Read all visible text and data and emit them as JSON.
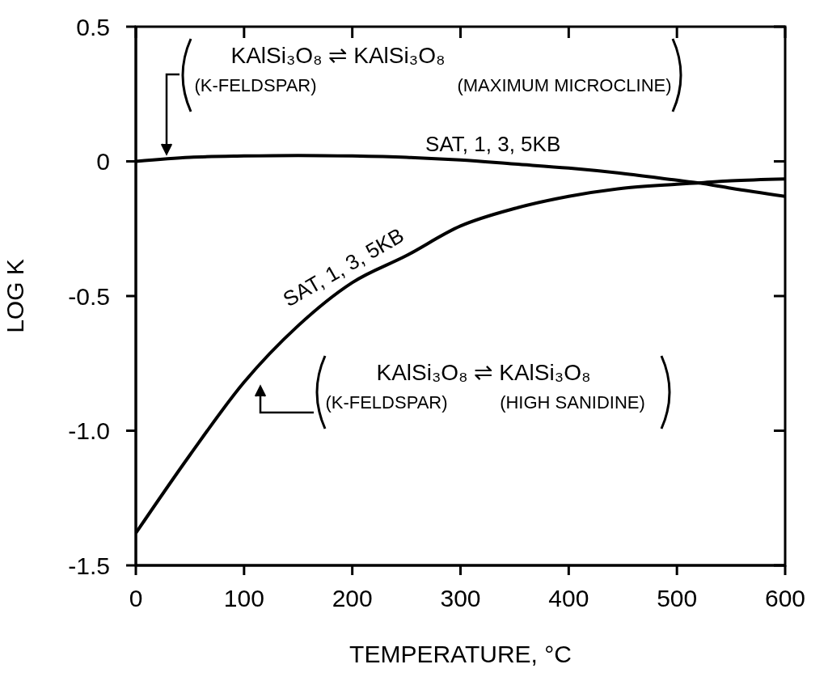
{
  "chart_data": {
    "type": "line",
    "xlabel": "TEMPERATURE, °C",
    "ylabel": "LOG K",
    "xlim": [
      0,
      600
    ],
    "xticks": [
      0,
      100,
      200,
      300,
      400,
      500,
      600
    ],
    "ylim": [
      -1.5,
      0.5
    ],
    "yticks": [
      0.5,
      0,
      -0.5,
      {
        "value": -1,
        "label": "-1.0"
      },
      -1.5
    ],
    "marker": "none",
    "line_style": "solid",
    "x": [
      0,
      50,
      100,
      150,
      200,
      250,
      300,
      350,
      400,
      450,
      500,
      520,
      550,
      600
    ],
    "series": [
      {
        "color": "#000000",
        "values": [
          0,
          0.015,
          0.02,
          0.022,
          0.02,
          0.015,
          0.005,
          -0.01,
          -0.025,
          -0.045,
          -0.07,
          -0.08,
          -0.1,
          -0.13
        ]
      },
      {
        "color": "#000000",
        "values": [
          -1.38,
          -1.09,
          -0.82,
          -0.61,
          -0.45,
          -0.35,
          -0.24,
          -0.175,
          -0.13,
          -0.1,
          -0.085,
          -0.08,
          -0.072,
          -0.065
        ]
      }
    ],
    "annotations": [
      {
        "text": "SAT, 1, 3, 5KB",
        "x": 330,
        "y": 0
      },
      {
        "text": "SAT, 1, 3, 5KB",
        "x": 200,
        "y": -0.45
      },
      "KAlSi₃O₈ ⇌ KAlSi₃O₈",
      "(K-FELDSPAR)",
      "(MAXIMUM MICROCLINE)",
      "KAlSi₃O₈ ⇌ KAlSi₃O₈",
      "(K-FELDSPAR)",
      "(HIGH SANIDINE)"
    ]
  }
}
